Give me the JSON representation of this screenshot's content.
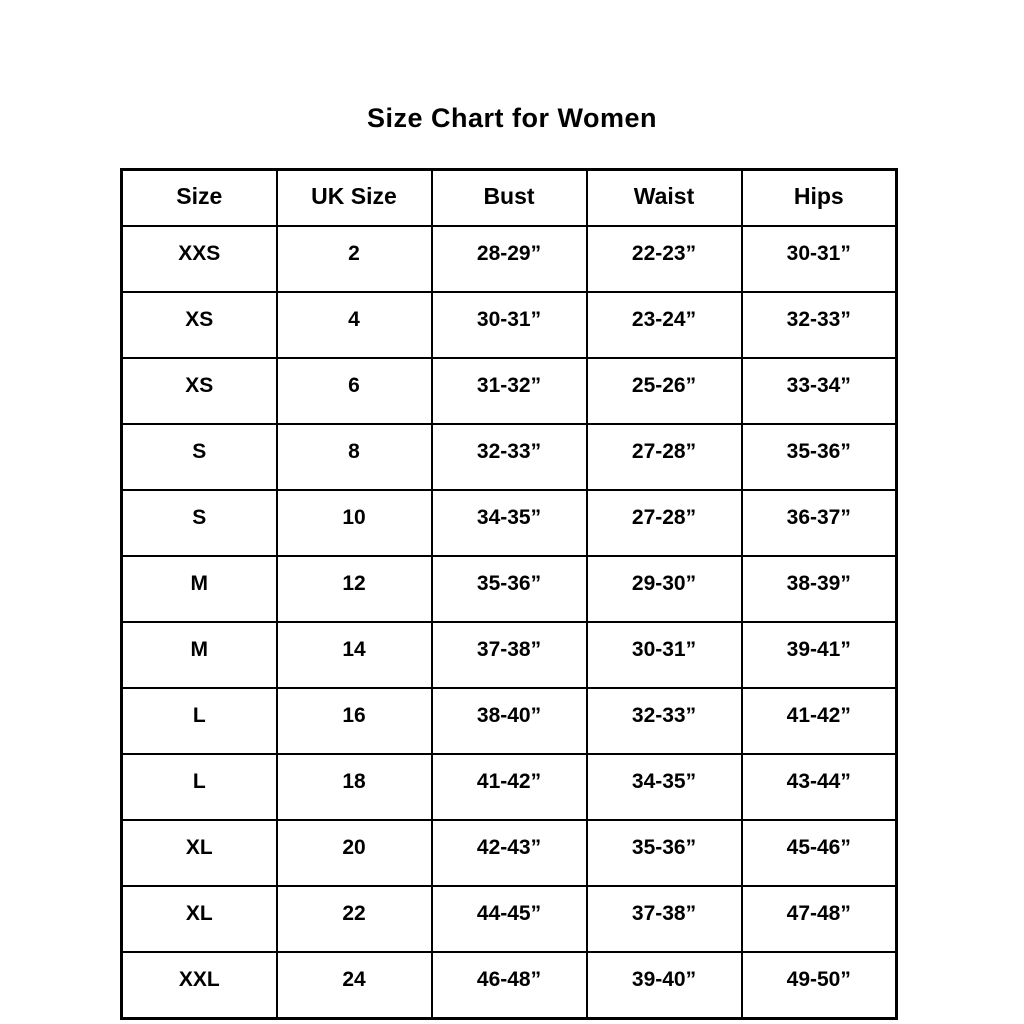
{
  "title": "Size Chart for Women",
  "chart_data": {
    "type": "table",
    "title": "Size Chart for Women",
    "columns": [
      "Size",
      "UK Size",
      "Bust",
      "Waist",
      "Hips"
    ],
    "rows": [
      [
        "XXS",
        "2",
        "28-29”",
        "22-23”",
        "30-31”"
      ],
      [
        "XS",
        "4",
        "30-31”",
        "23-24”",
        "32-33”"
      ],
      [
        "XS",
        "6",
        "31-32”",
        "25-26”",
        "33-34”"
      ],
      [
        "S",
        "8",
        "32-33”",
        "27-28”",
        "35-36”"
      ],
      [
        "S",
        "10",
        "34-35”",
        "27-28”",
        "36-37”"
      ],
      [
        "M",
        "12",
        "35-36”",
        "29-30”",
        "38-39”"
      ],
      [
        "M",
        "14",
        "37-38”",
        "30-31”",
        "39-41”"
      ],
      [
        "L",
        "16",
        "38-40”",
        "32-33”",
        "41-42”"
      ],
      [
        "L",
        "18",
        "41-42”",
        "34-35”",
        "43-44”"
      ],
      [
        "XL",
        "20",
        "42-43”",
        "35-36”",
        "45-46”"
      ],
      [
        "XL",
        "22",
        "44-45”",
        "37-38”",
        "47-48”"
      ],
      [
        "XXL",
        "24",
        "46-48”",
        "39-40”",
        "49-50”"
      ]
    ],
    "layout": {
      "grid": true,
      "border_color": "#000000",
      "background_color": "#ffffff",
      "text_color": "#000000"
    }
  }
}
